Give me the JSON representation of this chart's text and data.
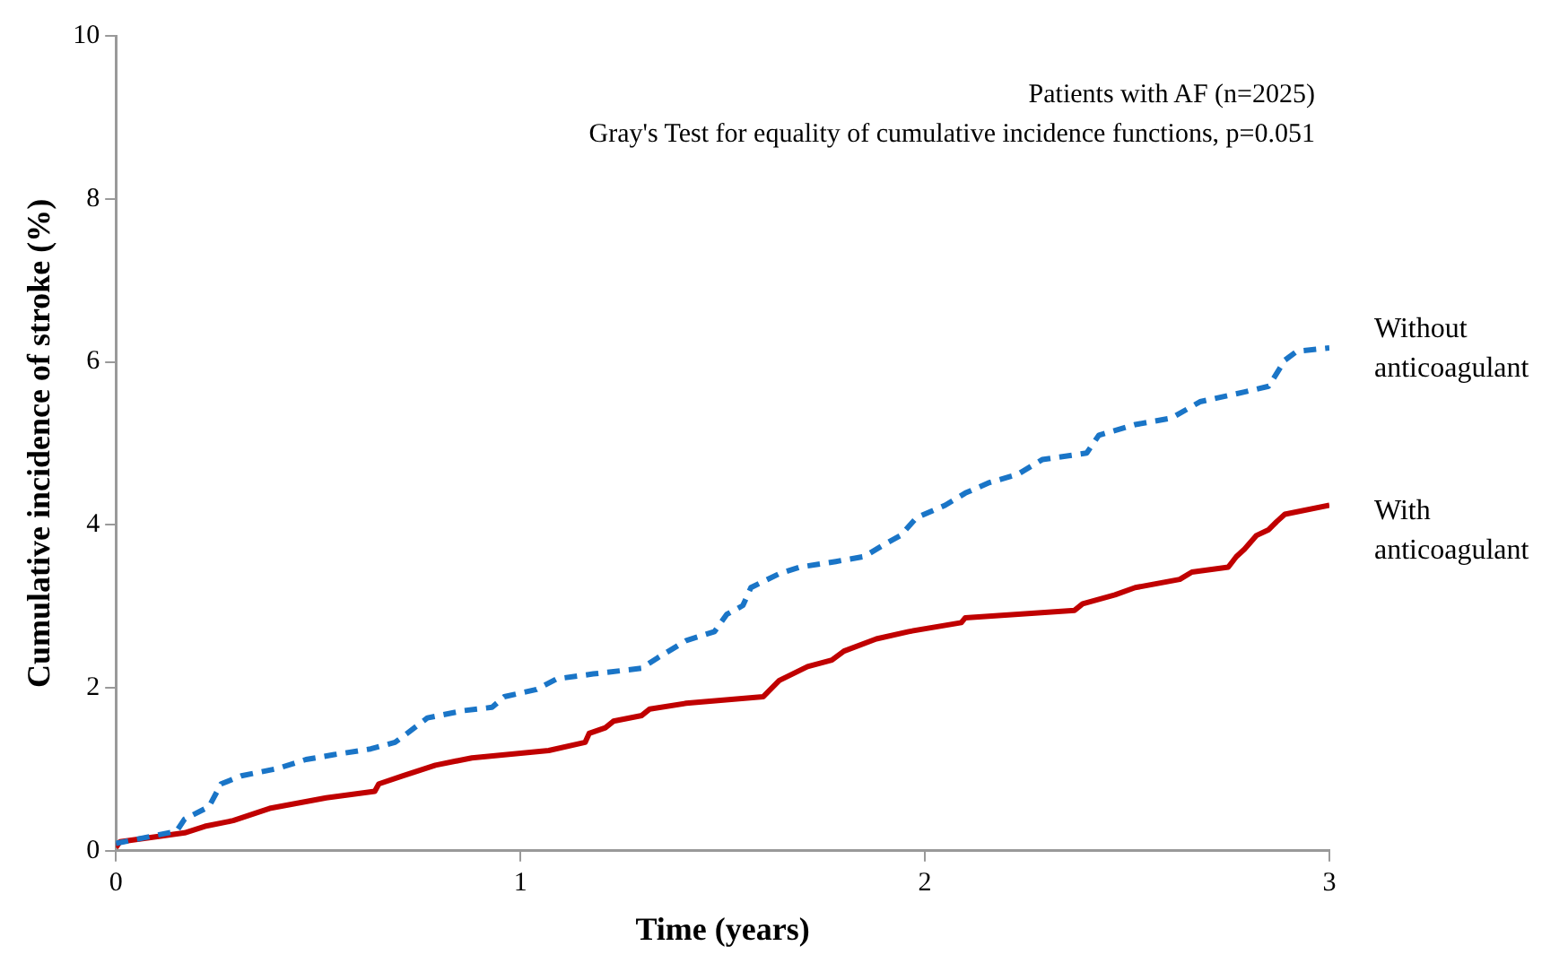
{
  "chart_data": {
    "type": "line",
    "xlabel": "Time (years)",
    "ylabel": "Cumulative incidence of stroke (%)",
    "annotations": [
      "Patients with AF (n=2025)",
      "Gray's Test for equality of cumulative incidence functions, p=0.051"
    ],
    "xlim": [
      0,
      3
    ],
    "xticks": [
      0,
      1,
      2,
      3
    ],
    "ylim": [
      0,
      10
    ],
    "yticks": [
      0,
      2,
      4,
      6,
      8,
      10
    ],
    "grid": false,
    "legend": false,
    "marker": "none",
    "series": [
      {
        "name": "Without anticoagulant",
        "color": "#1a75c7",
        "line_style": "dashed",
        "x": [
          0,
          0.08,
          0.15,
          0.17,
          0.23,
          0.26,
          0.31,
          0.4,
          0.47,
          0.54,
          0.63,
          0.69,
          0.72,
          0.77,
          0.86,
          0.93,
          0.96,
          1.04,
          1.09,
          1.18,
          1.3,
          1.34,
          1.41,
          1.48,
          1.51,
          1.55,
          1.57,
          1.64,
          1.69,
          1.78,
          1.85,
          1.9,
          1.94,
          1.98,
          2.05,
          2.1,
          2.16,
          2.23,
          2.29,
          2.4,
          2.43,
          2.52,
          2.61,
          2.68,
          2.79,
          2.85,
          2.89,
          2.92,
          3.0
        ],
        "values": [
          0.09,
          0.17,
          0.24,
          0.39,
          0.54,
          0.82,
          0.92,
          1.01,
          1.12,
          1.18,
          1.25,
          1.33,
          1.44,
          1.63,
          1.72,
          1.76,
          1.89,
          1.98,
          2.11,
          2.17,
          2.24,
          2.37,
          2.58,
          2.69,
          2.9,
          3.01,
          3.23,
          3.4,
          3.48,
          3.55,
          3.61,
          3.76,
          3.87,
          4.09,
          4.24,
          4.39,
          4.52,
          4.62,
          4.8,
          4.88,
          5.1,
          5.23,
          5.31,
          5.51,
          5.63,
          5.7,
          6.02,
          6.13,
          6.17
        ]
      },
      {
        "name": "With anticoagulant",
        "color": "#c00000",
        "line_style": "solid",
        "x": [
          0,
          0.01,
          0.17,
          0.22,
          0.29,
          0.38,
          0.52,
          0.64,
          0.65,
          0.71,
          0.79,
          0.88,
          1.07,
          1.16,
          1.17,
          1.21,
          1.23,
          1.3,
          1.32,
          1.41,
          1.6,
          1.64,
          1.71,
          1.77,
          1.8,
          1.88,
          1.96,
          2.09,
          2.1,
          2.37,
          2.39,
          2.47,
          2.52,
          2.63,
          2.66,
          2.75,
          2.77,
          2.79,
          2.82,
          2.85,
          2.87,
          2.89,
          3.0
        ],
        "values": [
          0.04,
          0.11,
          0.22,
          0.3,
          0.37,
          0.52,
          0.65,
          0.73,
          0.82,
          0.92,
          1.05,
          1.14,
          1.23,
          1.33,
          1.44,
          1.51,
          1.59,
          1.66,
          1.74,
          1.81,
          1.89,
          2.09,
          2.26,
          2.34,
          2.45,
          2.6,
          2.69,
          2.8,
          2.86,
          2.95,
          3.03,
          3.14,
          3.23,
          3.33,
          3.42,
          3.48,
          3.61,
          3.7,
          3.87,
          3.94,
          4.04,
          4.13,
          4.24
        ]
      }
    ]
  }
}
